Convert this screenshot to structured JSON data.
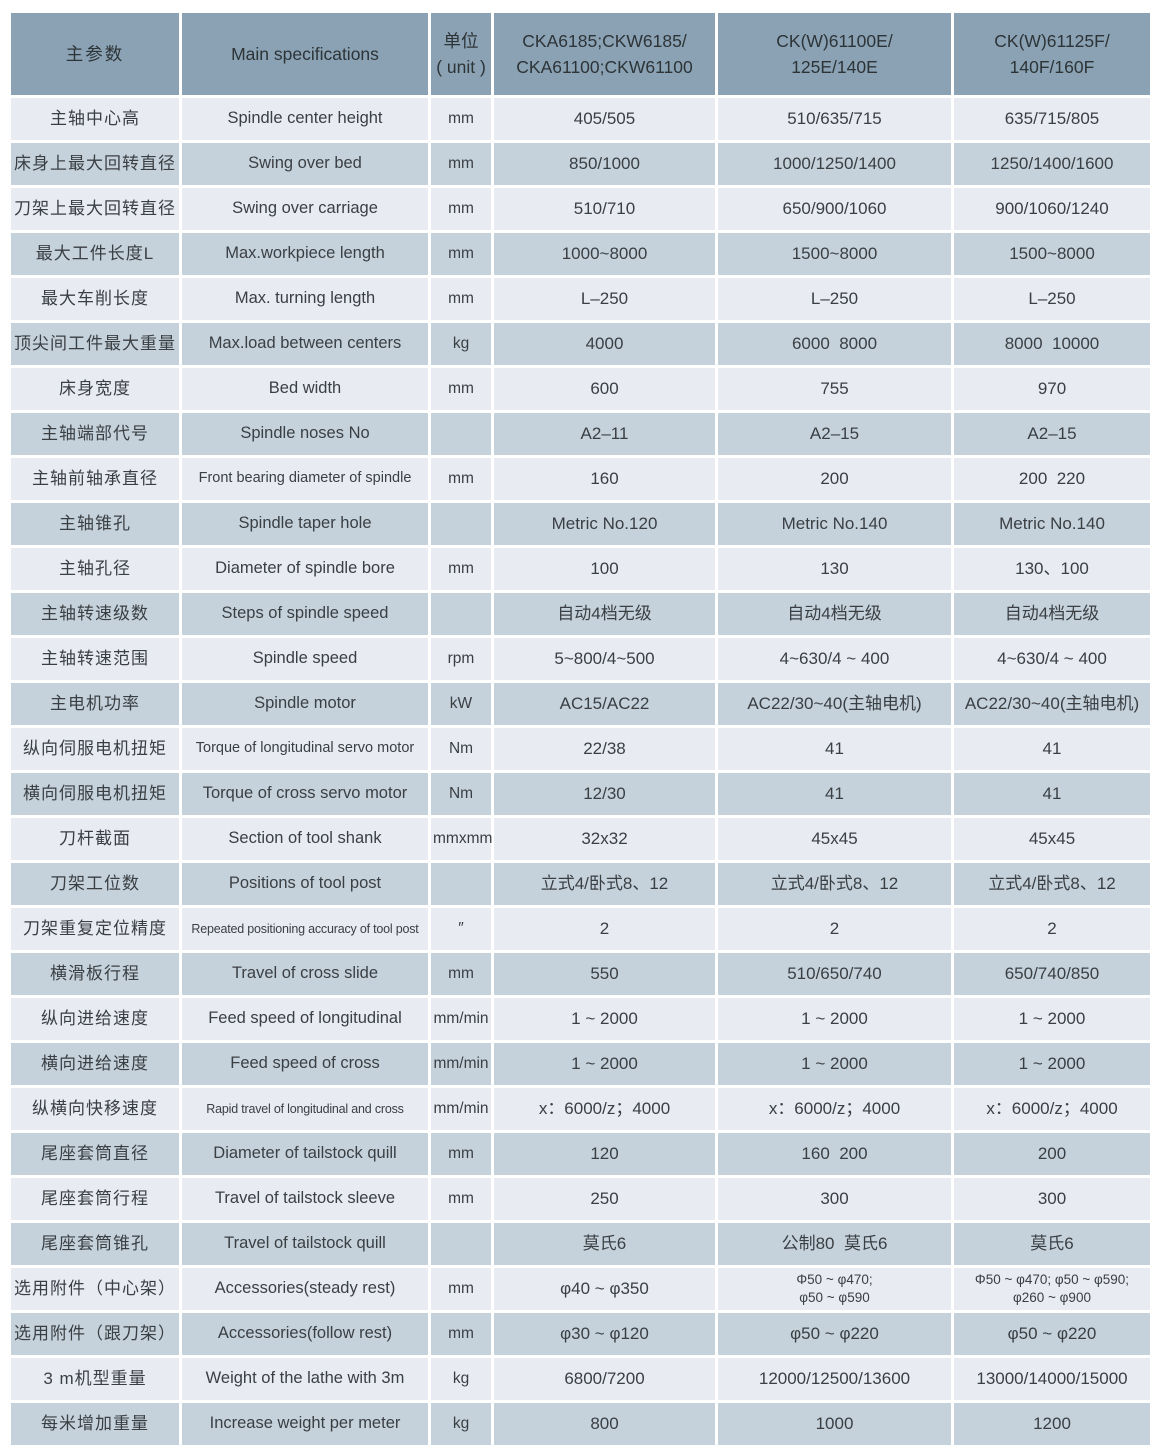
{
  "colors": {
    "header_bg": "#8aa2b3",
    "row_light": "#e8ebf1",
    "row_dark": "#c5d2db",
    "text": "#3a3f44",
    "header_text": "#2d3438"
  },
  "table": {
    "headers": {
      "param_cn": "主参数",
      "spec_en": "Main specifications",
      "unit": "单位\n( unit )",
      "model1": "CKA6185;CKW6185/\nCKA61100;CKW61100",
      "model2": "CK(W)61100E/\n125E/140E",
      "model3": "CK(W)61125F/\n140F/160F"
    },
    "rows": [
      {
        "cn": "主轴中心高",
        "en": "Spindle center height",
        "unit": "mm",
        "v1": "405/505",
        "v2": "510/635/715",
        "v3": "635/715/805"
      },
      {
        "cn": "床身上最大回转直径",
        "en": "Swing over bed",
        "unit": "mm",
        "v1": "850/1000",
        "v2": "1000/1250/1400",
        "v3": "1250/1400/1600"
      },
      {
        "cn": "刀架上最大回转直径",
        "en": "Swing over carriage",
        "unit": "mm",
        "v1": "510/710",
        "v2": "650/900/1060",
        "v3": "900/1060/1240"
      },
      {
        "cn": "最大工件长度L",
        "en": "Max.workpiece length",
        "unit": "mm",
        "v1": "1000~8000",
        "v2": "1500~8000",
        "v3": "1500~8000"
      },
      {
        "cn": "最大车削长度",
        "en": "Max. turning length",
        "unit": "mm",
        "v1": "L–250",
        "v2": "L–250",
        "v3": "L–250"
      },
      {
        "cn": "顶尖间工件最大重量",
        "en": "Max.load between centers",
        "unit": "kg",
        "v1": "4000",
        "v2": "6000  8000",
        "v3": "8000  10000"
      },
      {
        "cn": "床身宽度",
        "en": "Bed width",
        "unit": "mm",
        "v1": "600",
        "v2": "755",
        "v3": "970"
      },
      {
        "cn": "主轴端部代号",
        "en": "Spindle noses No",
        "unit": "",
        "v1": "A2–11",
        "v2": "A2–15",
        "v3": "A2–15"
      },
      {
        "cn": "主轴前轴承直径",
        "en": "Front bearing diameter of spindle",
        "unit": "mm",
        "v1": "160",
        "v2": "200",
        "v3": "200  220"
      },
      {
        "cn": "主轴锥孔",
        "en": "Spindle taper hole",
        "unit": "",
        "v1": "Metric No.120",
        "v2": "Metric No.140",
        "v3": "Metric No.140"
      },
      {
        "cn": "主轴孔径",
        "en": "Diameter of spindle bore",
        "unit": "mm",
        "v1": "100",
        "v2": "130",
        "v3": "130、100"
      },
      {
        "cn": "主轴转速级数",
        "en": "Steps of spindle speed",
        "unit": "",
        "v1": "自动4档无级",
        "v2": "自动4档无级",
        "v3": "自动4档无级"
      },
      {
        "cn": "主轴转速范围",
        "en": "Spindle speed",
        "unit": "rpm",
        "v1": "5~800/4~500",
        "v2": "4~630/4 ~ 400",
        "v3": "4~630/4 ~ 400"
      },
      {
        "cn": "主电机功率",
        "en": "Spindle motor",
        "unit": "kW",
        "v1": "AC15/AC22",
        "v2": "AC22/30~40(主轴电机)",
        "v3": "AC22/30~40(主轴电机)"
      },
      {
        "cn": "纵向伺服电机扭矩",
        "en": "Torque of longitudinal servo motor",
        "unit": "Nm",
        "v1": "22/38",
        "v2": "41",
        "v3": "41"
      },
      {
        "cn": "横向伺服电机扭矩",
        "en": "Torque of cross servo motor",
        "unit": "Nm",
        "v1": "12/30",
        "v2": "41",
        "v3": "41"
      },
      {
        "cn": "刀杆截面",
        "en": "Section of tool shank",
        "unit": "mmxmm",
        "v1": "32x32",
        "v2": "45x45",
        "v3": "45x45"
      },
      {
        "cn": "刀架工位数",
        "en": "Positions of tool post",
        "unit": "",
        "v1": "立式4/卧式8、12",
        "v2": "立式4/卧式8、12",
        "v3": "立式4/卧式8、12"
      },
      {
        "cn": "刀架重复定位精度",
        "en": "Repeated positioning accuracy of tool post",
        "unit": "″",
        "v1": "2",
        "v2": "2",
        "v3": "2"
      },
      {
        "cn": "横滑板行程",
        "en": "Travel of cross slide",
        "unit": "mm",
        "v1": "550",
        "v2": "510/650/740",
        "v3": "650/740/850"
      },
      {
        "cn": "纵向进给速度",
        "en": "Feed speed of longitudinal",
        "unit": "mm/min",
        "v1": "1 ~ 2000",
        "v2": "1 ~ 2000",
        "v3": "1 ~ 2000"
      },
      {
        "cn": "横向进给速度",
        "en": "Feed speed of cross",
        "unit": "mm/min",
        "v1": "1 ~ 2000",
        "v2": "1 ~ 2000",
        "v3": "1 ~ 2000"
      },
      {
        "cn": "纵横向快移速度",
        "en": "Rapid travel of longitudinal and cross",
        "unit": "mm/min",
        "v1": "x：6000/z；4000",
        "v2": "x：6000/z；4000",
        "v3": "x：6000/z；4000"
      },
      {
        "cn": "尾座套筒直径",
        "en": "Diameter of tailstock quill",
        "unit": "mm",
        "v1": "120",
        "v2": "160  200",
        "v3": "200"
      },
      {
        "cn": "尾座套筒行程",
        "en": "Travel of tailstock sleeve",
        "unit": "mm",
        "v1": "250",
        "v2": "300",
        "v3": "300"
      },
      {
        "cn": "尾座套筒锥孔",
        "en": "Travel of tailstock quill",
        "unit": "",
        "v1": "莫氏6",
        "v2": "公制80  莫氏6",
        "v3": "莫氏6"
      },
      {
        "cn": "选用附件（中心架）",
        "en": "Accessories(steady rest)",
        "unit": "mm",
        "v1": "φ40 ~ φ350",
        "v2": "Φ50 ~ φ470;\nφ50 ~ φ590",
        "v3": "Φ50 ~ φ470; φ50 ~ φ590;\nφ260 ~ φ900"
      },
      {
        "cn": "选用附件（跟刀架）",
        "en": "Accessories(follow rest)",
        "unit": "mm",
        "v1": "φ30 ~ φ120",
        "v2": "φ50 ~ φ220",
        "v3": "φ50 ~ φ220"
      },
      {
        "cn": "3 m机型重量",
        "en": "Weight of the lathe with 3m",
        "unit": "kg",
        "v1": "6800/7200",
        "v2": "12000/12500/13600",
        "v3": "13000/14000/15000"
      },
      {
        "cn": "每米增加重量",
        "en": "Increase weight per meter",
        "unit": "kg",
        "v1": "800",
        "v2": "1000",
        "v3": "1200"
      }
    ]
  }
}
